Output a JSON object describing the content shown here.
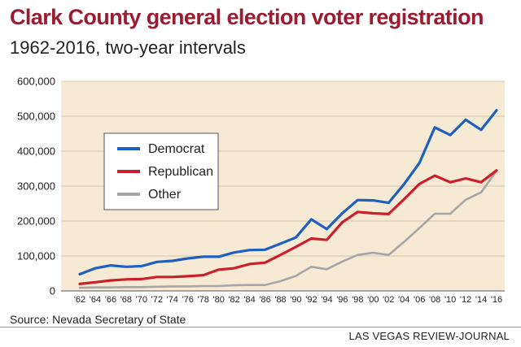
{
  "header": {
    "title": "Clark County general election voter registration",
    "subtitle": "1962-2016, two-year intervals"
  },
  "footer": {
    "source": "Source: Nevada Secretary of State",
    "credit": "LAS VEGAS REVIEW-JOURNAL"
  },
  "chart_data": {
    "type": "line",
    "title": "Clark County general election voter registration",
    "subtitle": "1962-2016, two-year intervals",
    "x": [
      "'62",
      "'64",
      "'66",
      "'68",
      "'70",
      "'72",
      "'74",
      "'76",
      "'78",
      "'80",
      "'82",
      "'84",
      "'86",
      "'88",
      "'90",
      "'92",
      "'94",
      "'96",
      "'98",
      "'00",
      "'02",
      "'04",
      "'06",
      "'08",
      "'10",
      "'12",
      "'14",
      "'16"
    ],
    "y_ticks": [
      "0",
      "100,000",
      "200,000",
      "300,000",
      "400,000",
      "500,000",
      "600,000"
    ],
    "ylim": [
      0,
      600000
    ],
    "grid": true,
    "legend_position": "center-left",
    "series": [
      {
        "name": "Democrat",
        "color": "#1f5fbf",
        "values": [
          48000,
          65000,
          73000,
          69000,
          71000,
          83000,
          86000,
          93000,
          98000,
          98000,
          110000,
          117000,
          118000,
          135000,
          153000,
          205000,
          177000,
          222000,
          260000,
          259000,
          252000,
          305000,
          366000,
          468000,
          446000,
          490000,
          461000,
          517000
        ]
      },
      {
        "name": "Republican",
        "color": "#cc1f2d",
        "values": [
          20000,
          25000,
          30000,
          33000,
          34000,
          40000,
          40000,
          42000,
          45000,
          61000,
          65000,
          77000,
          81000,
          103000,
          126000,
          150000,
          146000,
          196000,
          226000,
          222000,
          220000,
          262000,
          306000,
          330000,
          311000,
          322000,
          311000,
          345000
        ]
      },
      {
        "name": "Other",
        "color": "#a6a6a6",
        "values": [
          9000,
          10000,
          10000,
          11000,
          11000,
          12000,
          13000,
          13000,
          14000,
          14000,
          16000,
          17000,
          17000,
          28000,
          43000,
          69000,
          62000,
          84000,
          103000,
          109000,
          103000,
          140000,
          180000,
          221000,
          221000,
          261000,
          282000,
          344000
        ]
      }
    ]
  }
}
